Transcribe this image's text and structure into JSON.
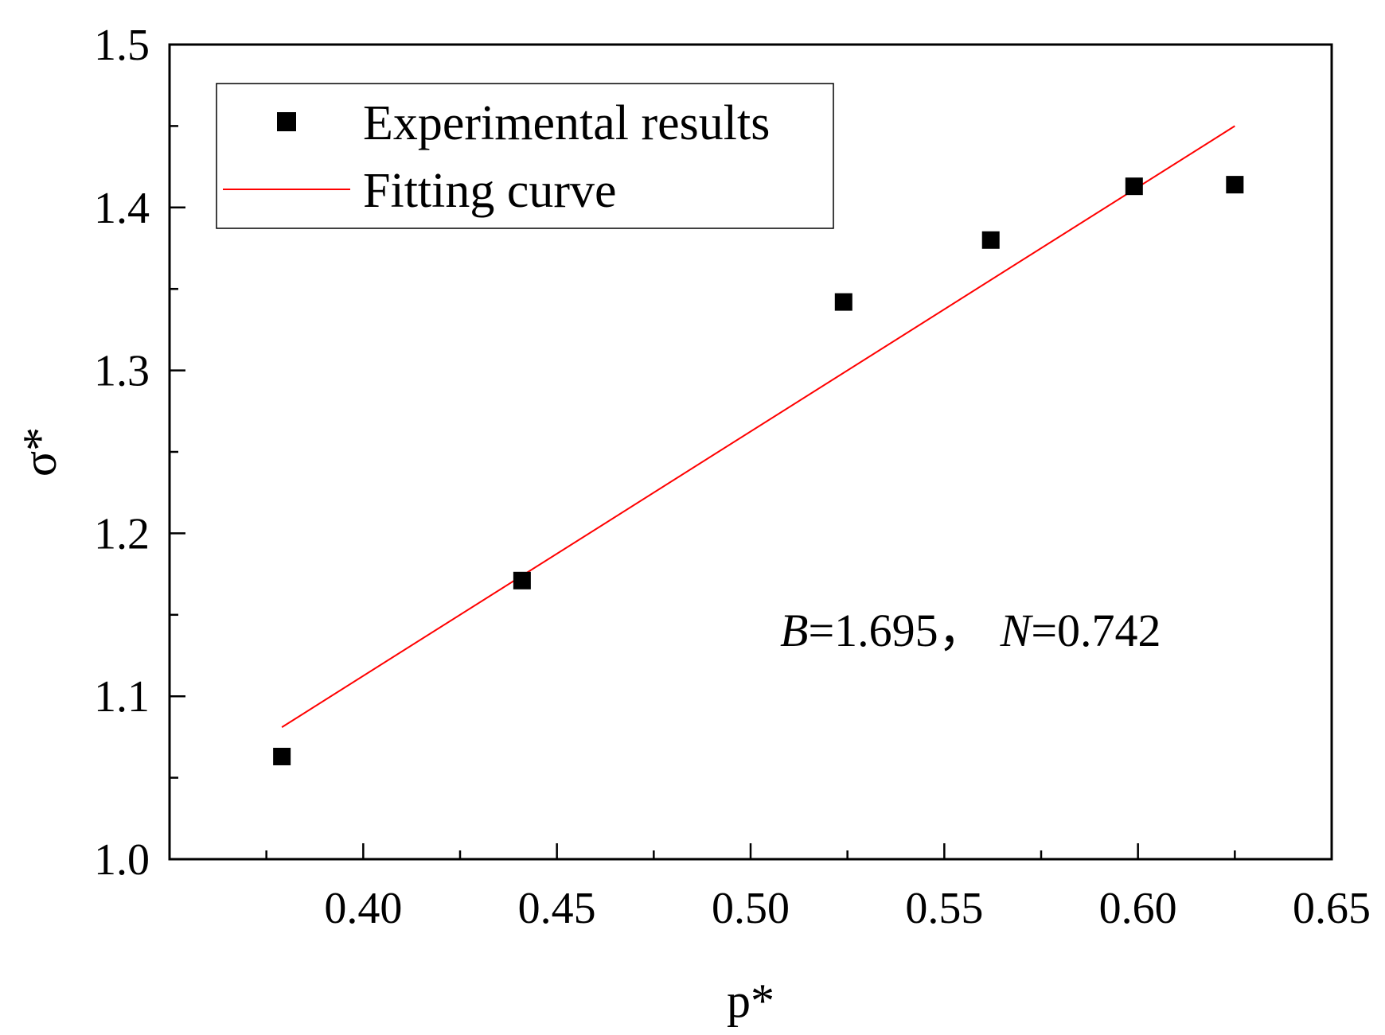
{
  "chart_data": {
    "type": "scatter",
    "xlabel": "p*",
    "ylabel": "σ*",
    "xlim": [
      0.35,
      0.65
    ],
    "ylim": [
      1.0,
      1.5
    ],
    "x_ticks": [
      "0.40",
      "0.45",
      "0.50",
      "0.55",
      "0.60",
      "0.65"
    ],
    "y_ticks": [
      "1.0",
      "1.1",
      "1.2",
      "1.3",
      "1.4",
      "1.5"
    ],
    "legend_position": "top-left",
    "series": [
      {
        "name": "Experimental results",
        "kind": "scatter",
        "marker": "square",
        "color": "#000000",
        "x": [
          0.379,
          0.441,
          0.524,
          0.562,
          0.599,
          0.625
        ],
        "y": [
          1.063,
          1.171,
          1.342,
          1.38,
          1.413,
          1.414
        ]
      },
      {
        "name": "Fitting curve",
        "kind": "line",
        "color": "#ff0000",
        "x": [
          0.379,
          0.625
        ],
        "y": [
          1.081,
          1.45
        ]
      }
    ],
    "annotation": {
      "b_label": "B",
      "b_value": "=1.695，",
      "n_label": "N",
      "n_value": "=0.742"
    }
  }
}
